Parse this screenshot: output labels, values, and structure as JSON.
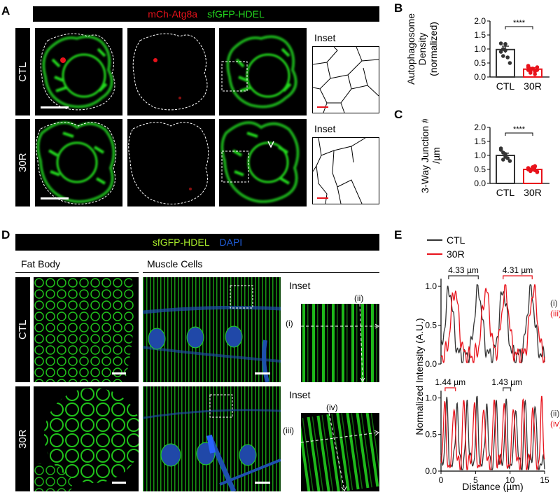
{
  "figure": {
    "panel_a": {
      "label": "A",
      "channel_red": "mCh-Atg8a",
      "channel_green": "sfGFP-HDEL",
      "row_ctl": "CTL",
      "row_30r": "30R",
      "inset_ctl": "Inset",
      "inset_30r": "Inset"
    },
    "panel_b": {
      "label": "B"
    },
    "panel_c": {
      "label": "C"
    },
    "panel_d": {
      "label": "D",
      "channel_green": "sfGFP-HDEL",
      "channel_blue": "DAPI",
      "col_fat": "Fat Body",
      "col_muscle": "Muscle Cells",
      "row_ctl": "CTL",
      "row_30r": "30R",
      "inset_ctl": "Inset",
      "inset_30r": "Inset",
      "mark_i": "(i)",
      "mark_ii": "(ii)",
      "mark_iii": "(iii)",
      "mark_iv": "(iv)"
    },
    "panel_e": {
      "label": "E"
    },
    "colors": {
      "ctl": "#333333",
      "r30": "#e8121b",
      "green": "#23d81e",
      "red": "#e8121b",
      "blue": "#1f5cd6"
    }
  },
  "chart_data": [
    {
      "type": "bar",
      "panel": "B",
      "categories": [
        "CTL",
        "30R"
      ],
      "values": [
        0.98,
        0.28
      ],
      "errors": [
        0.12,
        0.05
      ],
      "points": [
        [
          1.2,
          1.0,
          0.95,
          0.7,
          0.5,
          0.9,
          0.75,
          1.18
        ],
        [
          0.35,
          0.2,
          0.3,
          0.1,
          0.25,
          0.4,
          0.15,
          0.3,
          0.2,
          0.35,
          0.25,
          0.3
        ]
      ],
      "ylabel": "Autophagosome Density (normalized)",
      "ylim": [
        0,
        2.0
      ],
      "yticks": [
        "0.0",
        "0.5",
        "1.0",
        "1.5",
        "2.0"
      ],
      "significance": "****",
      "colors": [
        "#333333",
        "#e8121b"
      ]
    },
    {
      "type": "bar",
      "panel": "C",
      "categories": [
        "CTL",
        "30R"
      ],
      "values": [
        1.0,
        0.5
      ],
      "errors": [
        0.08,
        0.04
      ],
      "points": [
        [
          1.2,
          1.1,
          0.95,
          0.9,
          0.8,
          1.25,
          0.85,
          1.05
        ],
        [
          0.55,
          0.45,
          0.5,
          0.6,
          0.4,
          0.52,
          0.48,
          0.58,
          0.62,
          0.42,
          0.5,
          0.44,
          0.56,
          0.47
        ]
      ],
      "ylabel": "3-Way Junction # /µm",
      "ylim": [
        0,
        2.0
      ],
      "yticks": [
        "0.0",
        "0.5",
        "1.0",
        "1.5",
        "2.0"
      ],
      "significance": "****",
      "colors": [
        "#333333",
        "#e8121b"
      ]
    },
    {
      "type": "line",
      "panel": "E",
      "legend": [
        "CTL",
        "30R"
      ],
      "xlabel": "Distance (µm)",
      "ylabel": "Normalized Intensity (A.U.)",
      "xlim": [
        0,
        15
      ],
      "ylim": [
        0,
        1.1
      ],
      "xticks": [
        "0",
        "5",
        "10",
        "15"
      ],
      "yticks": [
        "0.0",
        "0.5",
        "1.0"
      ],
      "top": {
        "labels": [
          "(i)",
          "(iii)"
        ],
        "annotations": [
          {
            "text": "4.33 µm",
            "x1": 1.1,
            "x2": 5.4,
            "color": "#333333"
          },
          {
            "text": "4.31 µm",
            "x1": 9.0,
            "x2": 13.2,
            "color": "#e8121b"
          }
        ],
        "ctl_peaks": [
          1.2,
          5.4,
          9.0,
          13.0
        ],
        "r30_peaks": [
          2.0,
          6.5,
          9.3,
          13.4
        ]
      },
      "bottom": {
        "labels": [
          "(ii)",
          "(iv)"
        ],
        "annotations": [
          {
            "text": "1.44 µm",
            "x1": 0.6,
            "x2": 2.1,
            "color": "#e8121b"
          },
          {
            "text": "1.43 µm",
            "x1": 9.0,
            "x2": 10.1,
            "color": "#333333"
          }
        ],
        "ctl_peaks": [
          0.8,
          2.3,
          3.8,
          5.2,
          6.6,
          8.0,
          9.4,
          10.8,
          12.2,
          13.6
        ],
        "r30_peaks": [
          0.5,
          1.9,
          3.3,
          4.8,
          6.2,
          7.7,
          9.1,
          10.5,
          11.9,
          13.3,
          14.6
        ]
      }
    }
  ]
}
